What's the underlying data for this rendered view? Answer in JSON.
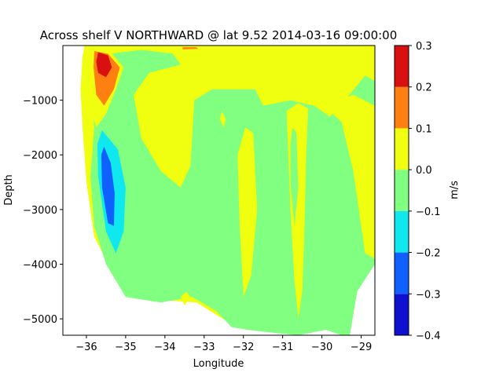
{
  "chart_data": {
    "type": "heatmap",
    "title": "Across shelf V NORTHWARD @ lat 9.52 2014-03-16 09:00:00",
    "xlabel": "Longitude",
    "ylabel": "Depth",
    "xlim": [
      -36.6,
      -28.65
    ],
    "ylim": [
      -5300,
      0
    ],
    "x_ticks": [
      -36,
      -35,
      -34,
      -33,
      -32,
      -31,
      -30,
      -29
    ],
    "x_tick_labels": [
      "−36",
      "−35",
      "−34",
      "−33",
      "−32",
      "−31",
      "−30",
      "−29"
    ],
    "y_ticks": [
      -1000,
      -2000,
      -3000,
      -4000,
      -5000
    ],
    "y_tick_labels": [
      "−1000",
      "−2000",
      "−3000",
      "−4000",
      "−5000"
    ],
    "colorbar": {
      "label": "m/s",
      "levels": [
        -0.4,
        -0.3,
        -0.2,
        -0.1,
        0.0,
        0.1,
        0.2,
        0.3
      ],
      "tick_labels": [
        "−0.4",
        "−0.3",
        "−0.2",
        "−0.1",
        "0.0",
        "0.1",
        "0.2",
        "0.3"
      ],
      "colors": [
        "#1010d0",
        "#1060ff",
        "#10e8f0",
        "#80ff80",
        "#f0ff10",
        "#ff8010",
        "#d81010"
      ]
    },
    "regions": [
      {
        "level": 4,
        "points": [
          [
            -36.05,
            0
          ],
          [
            -28.65,
            0
          ],
          [
            -28.65,
            -1000
          ],
          [
            -28.9,
            -1300
          ],
          [
            -29.1,
            -2000
          ],
          [
            -29.6,
            -3000
          ],
          [
            -30.3,
            -4000
          ],
          [
            -30.9,
            -4500
          ],
          [
            -31.2,
            -5000
          ],
          [
            -31.6,
            -5150
          ],
          [
            -32.3,
            -5100
          ],
          [
            -33.2,
            -4700
          ],
          [
            -34.2,
            -4650
          ],
          [
            -35.3,
            -4200
          ],
          [
            -35.8,
            -3500
          ],
          [
            -36.0,
            -2500
          ],
          [
            -36.1,
            -1500
          ],
          [
            -36.15,
            -800
          ],
          [
            -36.1,
            -200
          ]
        ]
      },
      {
        "level": 3,
        "points": [
          [
            -35.85,
            -50
          ],
          [
            -35.4,
            -150
          ],
          [
            -34.6,
            -80
          ],
          [
            -33.8,
            -150
          ],
          [
            -33.6,
            -350
          ],
          [
            -34.4,
            -500
          ],
          [
            -34.8,
            -900
          ],
          [
            -34.6,
            -1700
          ],
          [
            -34.1,
            -2300
          ],
          [
            -33.6,
            -2600
          ],
          [
            -33.35,
            -2200
          ],
          [
            -33.25,
            -1000
          ],
          [
            -32.8,
            -800
          ],
          [
            -31.7,
            -800
          ],
          [
            -31.5,
            -1100
          ],
          [
            -30.8,
            -1000
          ],
          [
            -30.2,
            -1100
          ],
          [
            -29.8,
            -1300
          ],
          [
            -29.3,
            -900
          ],
          [
            -28.9,
            -550
          ],
          [
            -28.65,
            -650
          ],
          [
            -28.65,
            -4000
          ],
          [
            -29.1,
            -4500
          ],
          [
            -29.3,
            -5350
          ],
          [
            -29.9,
            -5200
          ],
          [
            -30.6,
            -5300
          ],
          [
            -31.3,
            -5250
          ],
          [
            -31.9,
            -5200
          ],
          [
            -32.3,
            -5150
          ],
          [
            -32.7,
            -4850
          ],
          [
            -33.3,
            -4600
          ],
          [
            -34.1,
            -4700
          ],
          [
            -35.0,
            -4600
          ],
          [
            -35.5,
            -4000
          ],
          [
            -35.8,
            -3300
          ],
          [
            -35.9,
            -2400
          ],
          [
            -35.8,
            -1500
          ],
          [
            -35.85,
            -800
          ],
          [
            -35.95,
            -300
          ]
        ]
      },
      {
        "level": 4,
        "points": [
          [
            -31.95,
            -1500
          ],
          [
            -31.75,
            -1600
          ],
          [
            -31.65,
            -3000
          ],
          [
            -31.8,
            -4200
          ],
          [
            -32.0,
            -4600
          ],
          [
            -32.1,
            -3200
          ],
          [
            -32.15,
            -2000
          ]
        ]
      },
      {
        "level": 4,
        "points": [
          [
            -30.9,
            -1200
          ],
          [
            -30.8,
            -3000
          ],
          [
            -30.7,
            -4300
          ],
          [
            -30.6,
            -5000
          ],
          [
            -30.5,
            -4500
          ],
          [
            -30.45,
            -3500
          ],
          [
            -30.4,
            -2000
          ],
          [
            -30.35,
            -1150
          ],
          [
            -30.6,
            -1050
          ]
        ]
      },
      {
        "level": 4,
        "points": [
          [
            -32.55,
            -1200
          ],
          [
            -32.45,
            -1350
          ],
          [
            -32.5,
            -1500
          ],
          [
            -32.6,
            -1350
          ]
        ]
      },
      {
        "level": 4,
        "points": [
          [
            -33.45,
            -4500
          ],
          [
            -33.35,
            -4600
          ],
          [
            -33.5,
            -4750
          ],
          [
            -33.6,
            -4600
          ]
        ]
      },
      {
        "level": 4,
        "points": [
          [
            -29.8,
            -1200
          ],
          [
            -29.5,
            -1400
          ],
          [
            -29.2,
            -2300
          ],
          [
            -29.0,
            -3300
          ],
          [
            -28.9,
            -3800
          ],
          [
            -28.65,
            -3900
          ],
          [
            -28.65,
            -1100
          ],
          [
            -29.2,
            -900
          ],
          [
            -29.6,
            -1000
          ]
        ]
      },
      {
        "level": 3,
        "points": [
          [
            -30.75,
            -1500
          ],
          [
            -30.65,
            -1600
          ],
          [
            -30.6,
            -2600
          ],
          [
            -30.7,
            -3300
          ],
          [
            -30.8,
            -2500
          ],
          [
            -30.8,
            -1800
          ]
        ]
      },
      {
        "level": 2,
        "points": [
          [
            -35.6,
            -1550
          ],
          [
            -35.2,
            -1900
          ],
          [
            -35.0,
            -2600
          ],
          [
            -35.05,
            -3400
          ],
          [
            -35.25,
            -3800
          ],
          [
            -35.5,
            -3400
          ],
          [
            -35.7,
            -2400
          ],
          [
            -35.72,
            -1800
          ]
        ]
      },
      {
        "level": 1,
        "points": [
          [
            -35.55,
            -1850
          ],
          [
            -35.38,
            -2150
          ],
          [
            -35.28,
            -2700
          ],
          [
            -35.3,
            -3300
          ],
          [
            -35.45,
            -3250
          ],
          [
            -35.6,
            -2600
          ],
          [
            -35.62,
            -2000
          ]
        ]
      },
      {
        "level": 4,
        "points": [
          [
            -35.95,
            -50
          ],
          [
            -35.4,
            -100
          ],
          [
            -35.05,
            -400
          ],
          [
            -35.3,
            -900
          ],
          [
            -35.5,
            -1250
          ],
          [
            -35.75,
            -1500
          ],
          [
            -35.9,
            -1100
          ],
          [
            -35.95,
            -500
          ]
        ]
      },
      {
        "level": 5,
        "points": [
          [
            -35.8,
            -100
          ],
          [
            -35.45,
            -150
          ],
          [
            -35.15,
            -400
          ],
          [
            -35.3,
            -800
          ],
          [
            -35.55,
            -1100
          ],
          [
            -35.75,
            -900
          ],
          [
            -35.82,
            -400
          ]
        ]
      },
      {
        "level": 6,
        "points": [
          [
            -35.7,
            -120
          ],
          [
            -35.45,
            -180
          ],
          [
            -35.35,
            -400
          ],
          [
            -35.5,
            -580
          ],
          [
            -35.7,
            -500
          ],
          [
            -35.75,
            -300
          ]
        ]
      },
      {
        "level": 5,
        "points": [
          [
            -33.55,
            -30
          ],
          [
            -33.2,
            -30
          ],
          [
            -33.15,
            -60
          ],
          [
            -33.55,
            -70
          ]
        ]
      }
    ]
  }
}
